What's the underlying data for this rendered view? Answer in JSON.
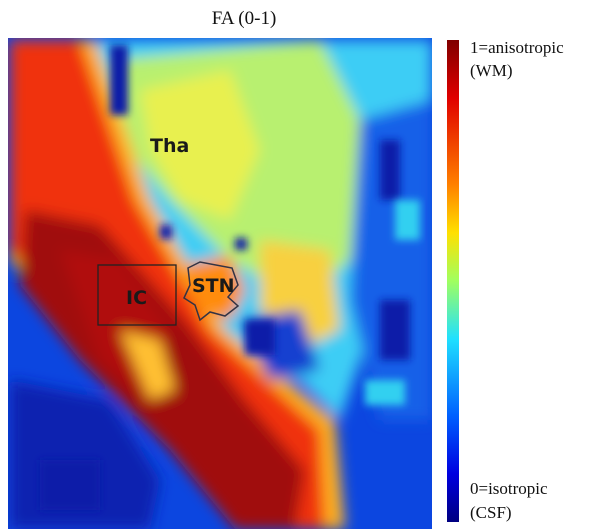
{
  "figure": {
    "title": "FA (0-1)",
    "regions": [
      "Tha",
      "STN",
      "IC"
    ],
    "colorbar": {
      "top": [
        "1=anisotropic",
        "(WM)"
      ],
      "bottom": [
        "0=isotropic",
        "(CSF)"
      ]
    }
  }
}
